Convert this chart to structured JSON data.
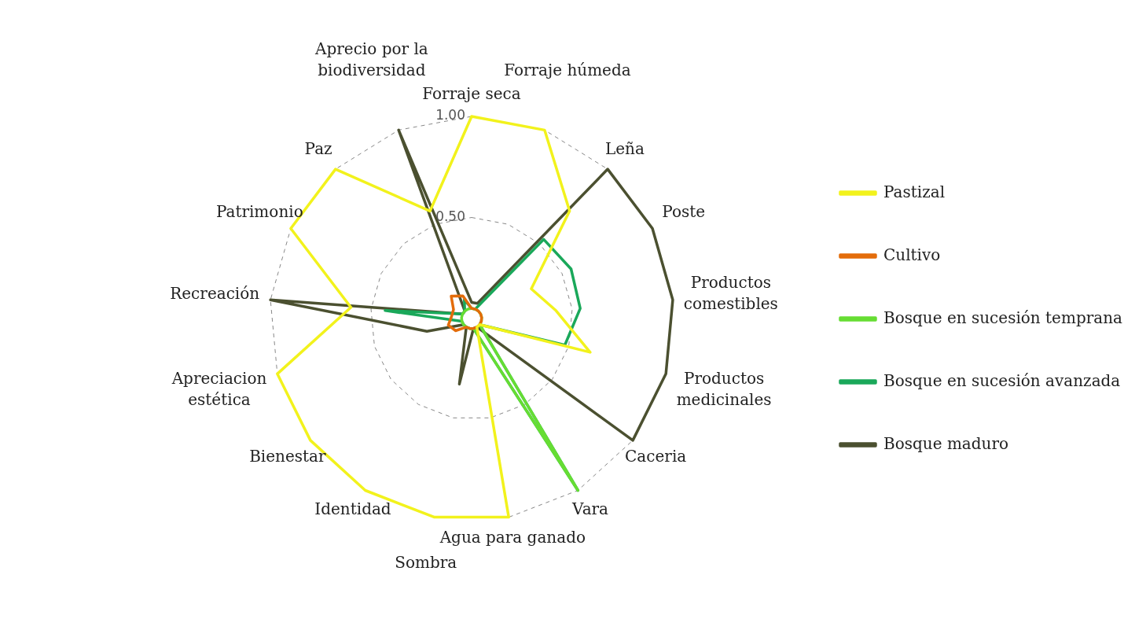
{
  "chart_data": {
    "type": "radar",
    "categories": [
      "Forraje seca",
      "Forraje húmeda",
      "Leña",
      "Poste",
      "Productos comestibles",
      "Productos medicinales",
      "Caceria",
      "Vara",
      "Agua para ganado",
      "Sombra",
      "Identidad",
      "Bienestar",
      "Apreciacion estética",
      "Recreación",
      "Patrimonio",
      "Paz",
      "Aprecio por la biodiversidad"
    ],
    "ylim": [
      0,
      1
    ],
    "yticks": [
      {
        "value": 0.5,
        "label": "0.50"
      },
      {
        "value": 1,
        "label": "1.00"
      }
    ],
    "grid": true,
    "legend": "right",
    "marker": "none",
    "line_style": "solid",
    "series": [
      {
        "name": "Pastizal",
        "color": "#f2f21c",
        "values": [
          1,
          1,
          0.72,
          0.33,
          0.42,
          0.61,
          0.05,
          0.05,
          1,
          1,
          1,
          1,
          1,
          0.6,
          1,
          1,
          0.57
        ]
      },
      {
        "name": "Cultivo",
        "color": "#e36c0a",
        "values": [
          0.05,
          0.05,
          0.05,
          0.05,
          0.05,
          0.05,
          0.05,
          0.05,
          0.05,
          0.05,
          0.05,
          0.1,
          0.12,
          0.1,
          0.1,
          0.15,
          0.12
        ]
      },
      {
        "name": "Bosque en sucesión temprana",
        "color": "#66dd33",
        "values": [
          0.05,
          0.05,
          0.05,
          0.05,
          0.05,
          0.05,
          0.05,
          1,
          0.05,
          0.05,
          0.05,
          0.05,
          0.05,
          0.05,
          0.05,
          0.05,
          0.05
        ]
      },
      {
        "name": "Bosque en sucesión avanzada",
        "color": "#1aa85a",
        "values": [
          0.05,
          0.05,
          0.53,
          0.55,
          0.54,
          0.48,
          0.05,
          1,
          0.05,
          0.05,
          0.05,
          0.05,
          0.05,
          0.43,
          0.05,
          0.05,
          0.1
        ]
      },
      {
        "name": "Bosque maduro",
        "color": "#4b5030",
        "values": [
          0.08,
          0.08,
          1,
          1,
          1,
          1,
          1,
          0.05,
          0.05,
          0.33,
          0.05,
          0.05,
          0.23,
          1,
          0.05,
          0.05,
          1
        ]
      }
    ]
  }
}
